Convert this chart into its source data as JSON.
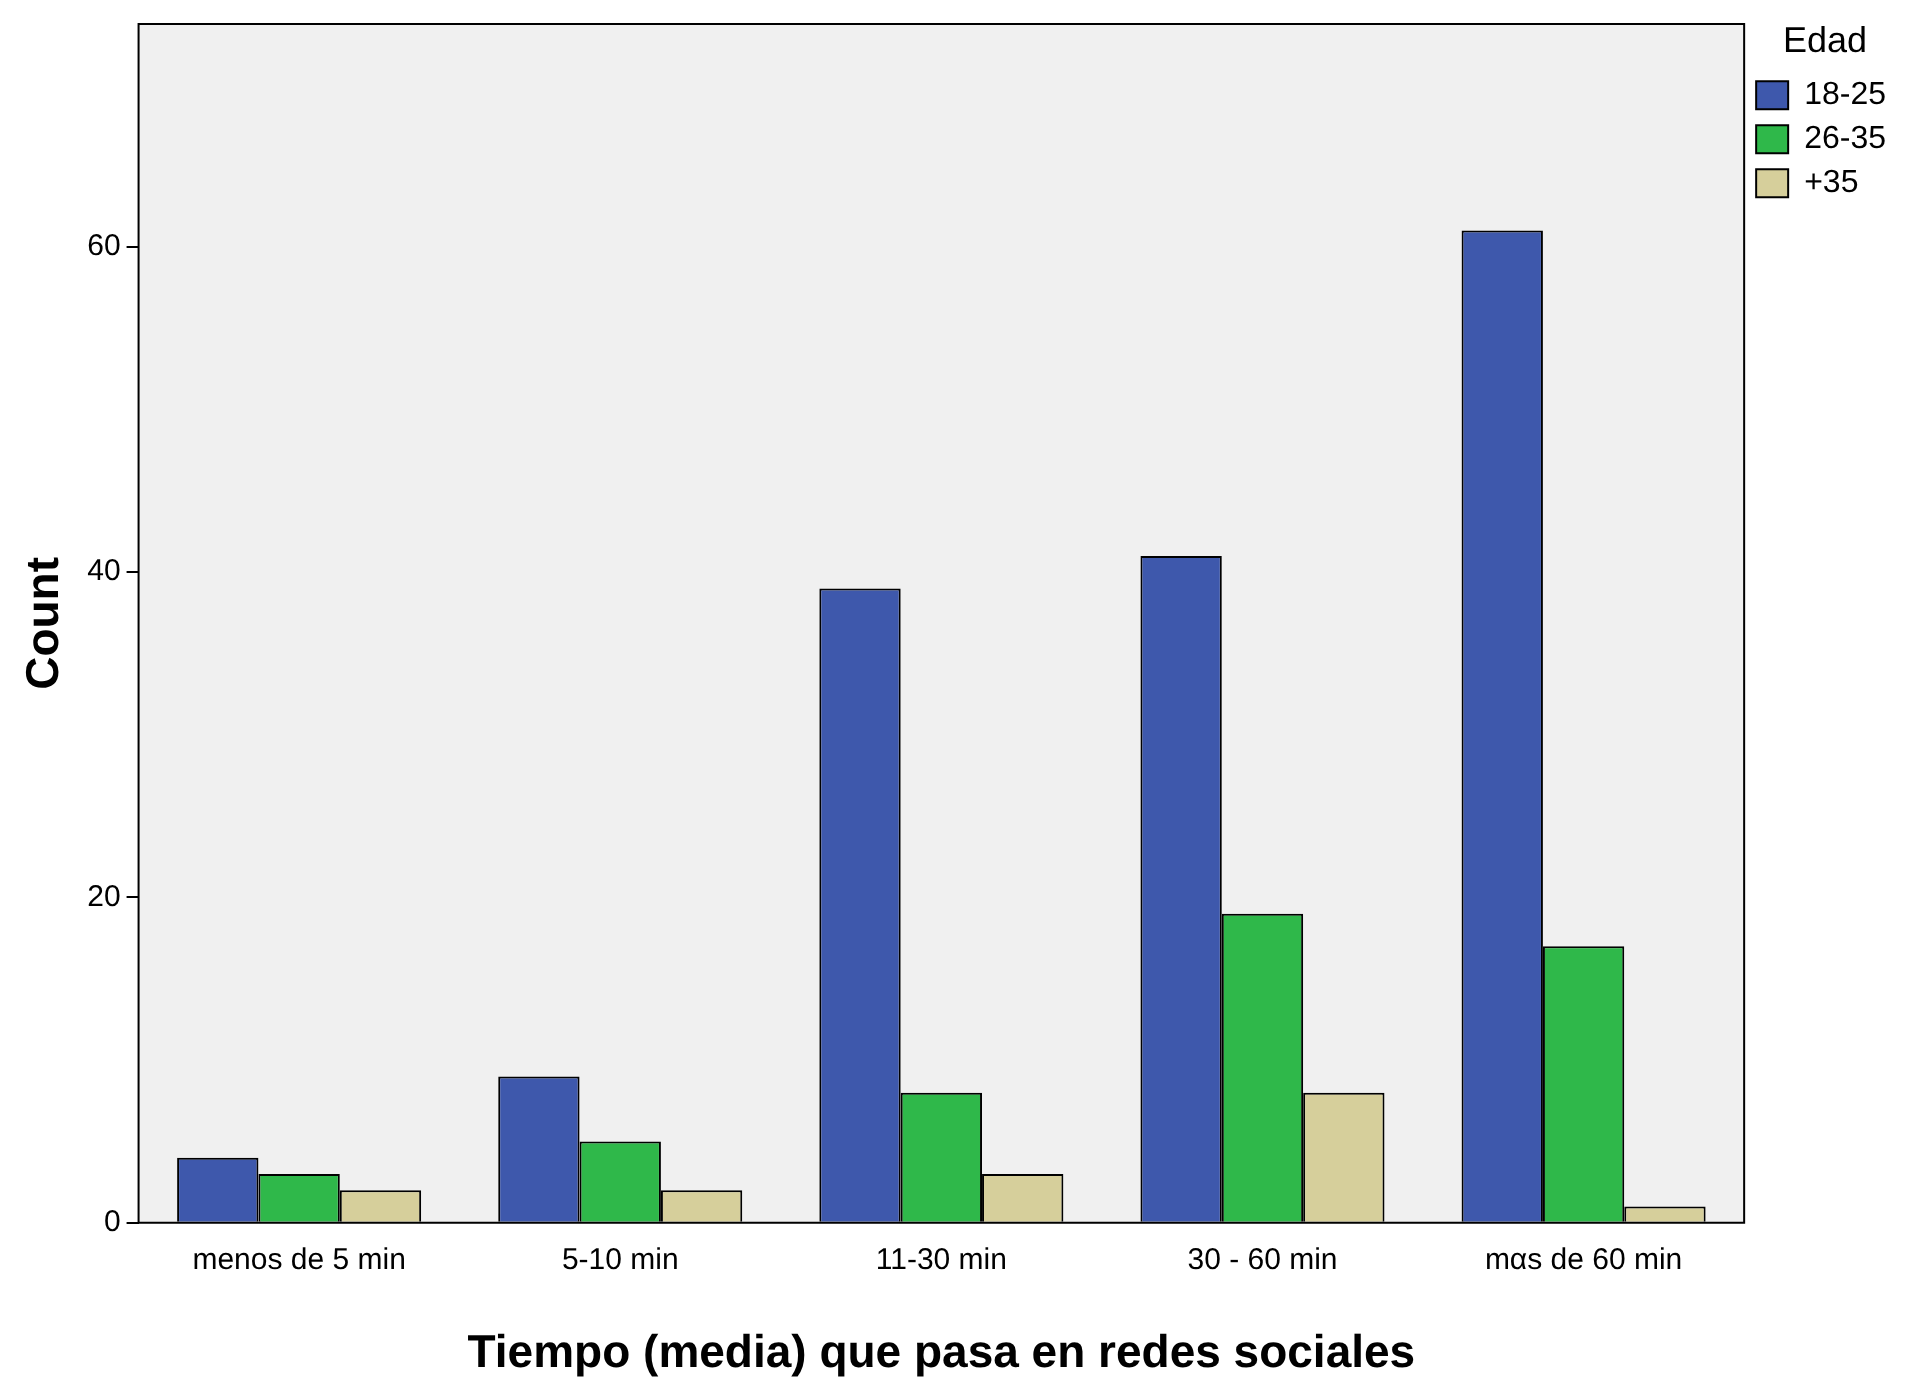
{
  "chart_data": {
    "type": "bar",
    "xlabel": "Tiempo (media) que pasa en redes sociales",
    "ylabel": "Count",
    "legend_title": "Edad",
    "legend": "top right",
    "categories": [
      "menos de 5 min",
      "5-10 min",
      "11-30 min",
      "30 - 60 min",
      "mαs de 60 min"
    ],
    "series": [
      {
        "name": "18-25",
        "color": "#3e58ac",
        "values": [
          4,
          9,
          39,
          41,
          61
        ]
      },
      {
        "name": "26-35",
        "color": "#2fb84a",
        "values": [
          3,
          5,
          8,
          19,
          17
        ]
      },
      {
        "name": "+35",
        "color": "#d6cf9b",
        "values": [
          2,
          2,
          3,
          8,
          1
        ]
      }
    ],
    "ylim": [
      0,
      73.7
    ],
    "yticks": [
      0,
      20,
      40,
      60
    ]
  }
}
